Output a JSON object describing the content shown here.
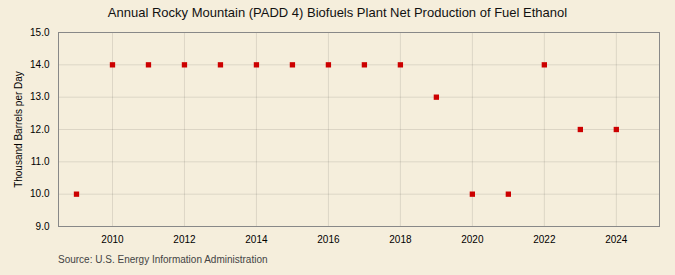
{
  "chart_data": {
    "type": "scatter",
    "title": "Annual Rocky Mountain (PADD 4) Biofuels Plant Net Production of Fuel Ethanol",
    "ylabel": "Thousand Barrels per Day",
    "annotations": [
      "Source: U.S. Energy Information Administration"
    ],
    "x": [
      2009,
      2010,
      2011,
      2012,
      2013,
      2014,
      2015,
      2016,
      2017,
      2018,
      2019,
      2020,
      2021,
      2022,
      2023,
      2024
    ],
    "values": [
      10.0,
      14.0,
      14.0,
      14.0,
      14.0,
      14.0,
      14.0,
      14.0,
      14.0,
      14.0,
      13.0,
      10.0,
      10.0,
      14.0,
      12.0,
      12.0
    ],
    "color": "#cc0000",
    "marker": "square",
    "xlim": [
      2008.5,
      2025.2
    ],
    "xticks": [
      2010,
      2012,
      2014,
      2016,
      2018,
      2020,
      2022,
      2024
    ],
    "ylim": [
      9.0,
      15.0
    ],
    "yticks": [
      {
        "value": 9.0,
        "label": "9.0"
      },
      {
        "value": 10.0,
        "label": "10.0"
      },
      {
        "value": 11.0,
        "label": "11.0"
      },
      {
        "value": 12.0,
        "label": "12.0"
      },
      {
        "value": 13.0,
        "label": "13.0"
      },
      {
        "value": 14.0,
        "label": "14.0"
      },
      {
        "value": 15.0,
        "label": "15.0"
      }
    ],
    "grid": true
  }
}
